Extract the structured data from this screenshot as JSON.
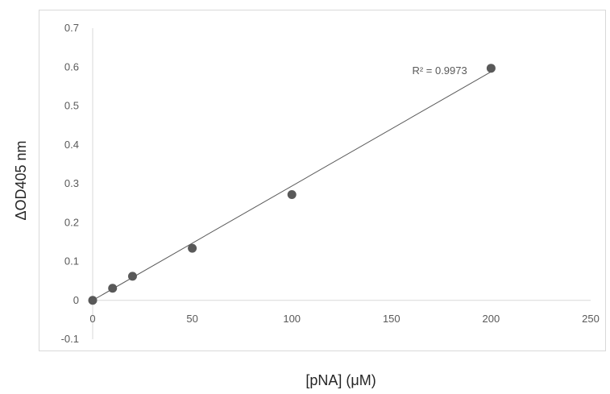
{
  "chart_data": {
    "type": "scatter",
    "title": "",
    "xlabel": "[pNA] (μM)",
    "ylabel": "ΔOD405 nm",
    "xlim": [
      0,
      250
    ],
    "ylim": [
      -0.1,
      0.7
    ],
    "xticks": [
      0,
      50,
      100,
      150,
      200,
      250
    ],
    "yticks": [
      -0.1,
      0,
      0.1,
      0.2,
      0.3,
      0.4,
      0.5,
      0.6,
      0.7
    ],
    "xtick_labels": [
      "0",
      "50",
      "100",
      "150",
      "200",
      "250"
    ],
    "ytick_labels": [
      "-0.1",
      "0",
      "0.1",
      "0.2",
      "0.3",
      "0.4",
      "0.5",
      "0.6",
      "0.7"
    ],
    "grid": false,
    "legend": "none",
    "series": [
      {
        "x": [
          0,
          10,
          20,
          50,
          100,
          200
        ],
        "y": [
          0,
          0.031,
          0.062,
          0.134,
          0.272,
          0.597
        ],
        "color": "#595959"
      }
    ],
    "trendline": {
      "type": "linear",
      "x": [
        0,
        200
      ],
      "y": [
        0.0,
        0.588
      ],
      "color": "#595959"
    },
    "annotations": [
      {
        "text": "R² = 0.9973",
        "x": 188,
        "y": 0.592
      }
    ]
  }
}
